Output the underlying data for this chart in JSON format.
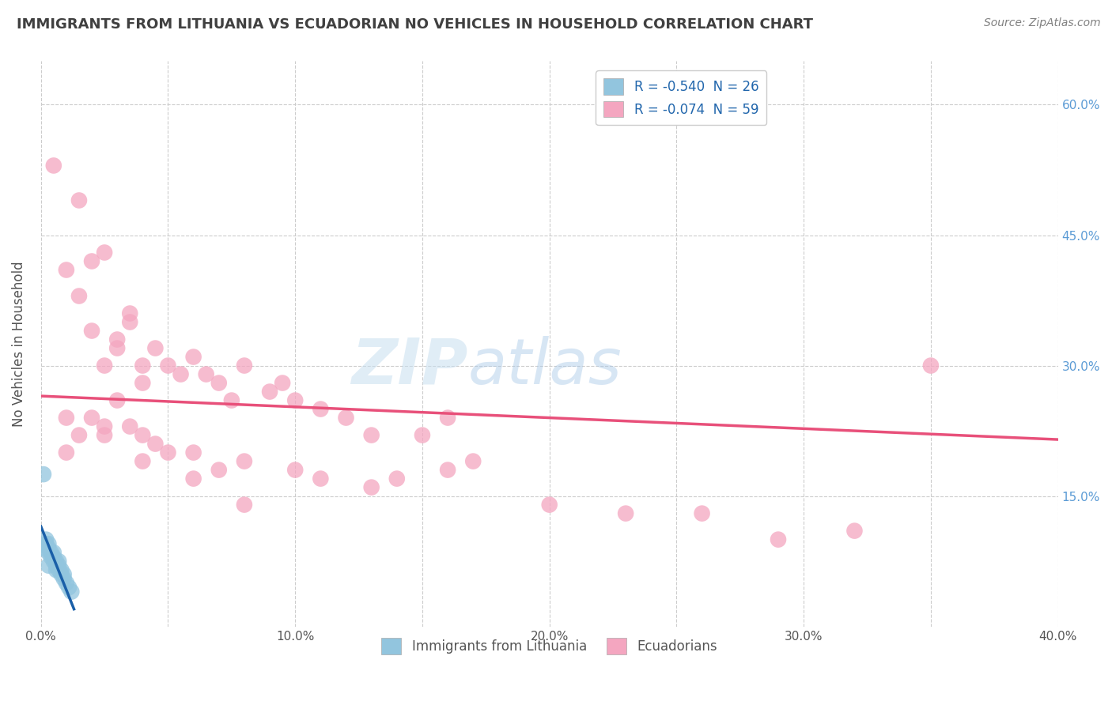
{
  "title": "IMMIGRANTS FROM LITHUANIA VS ECUADORIAN NO VEHICLES IN HOUSEHOLD CORRELATION CHART",
  "source": "Source: ZipAtlas.com",
  "ylabel": "No Vehicles in Household",
  "xlim": [
    0.0,
    0.4
  ],
  "ylim": [
    0.0,
    0.65
  ],
  "xticks": [
    0.0,
    0.05,
    0.1,
    0.15,
    0.2,
    0.25,
    0.3,
    0.35,
    0.4
  ],
  "xticklabels": [
    "0.0%",
    "",
    "10.0%",
    "",
    "20.0%",
    "",
    "30.0%",
    "",
    "40.0%"
  ],
  "yticks_right": [
    0.15,
    0.3,
    0.45,
    0.6
  ],
  "ytick_right_labels": [
    "15.0%",
    "30.0%",
    "45.0%",
    "60.0%"
  ],
  "legend1_label": "R = -0.540  N = 26",
  "legend2_label": "R = -0.074  N = 59",
  "legend_bottom1": "Immigrants from Lithuania",
  "legend_bottom2": "Ecuadorians",
  "blue_color": "#92c5de",
  "pink_color": "#f4a6c0",
  "blue_line_color": "#1a5fa8",
  "pink_line_color": "#e8507a",
  "blue_scatter_x": [
    0.001,
    0.002,
    0.002,
    0.003,
    0.003,
    0.003,
    0.004,
    0.004,
    0.005,
    0.005,
    0.005,
    0.006,
    0.006,
    0.007,
    0.007,
    0.007,
    0.008,
    0.008,
    0.009,
    0.009,
    0.01,
    0.011,
    0.012,
    0.001,
    0.003,
    0.006
  ],
  "blue_scatter_y": [
    0.175,
    0.095,
    0.1,
    0.085,
    0.09,
    0.095,
    0.08,
    0.085,
    0.075,
    0.08,
    0.085,
    0.07,
    0.075,
    0.065,
    0.07,
    0.075,
    0.06,
    0.065,
    0.055,
    0.06,
    0.05,
    0.045,
    0.04,
    0.09,
    0.07,
    0.065
  ],
  "pink_scatter_x": [
    0.005,
    0.015,
    0.01,
    0.02,
    0.015,
    0.025,
    0.02,
    0.03,
    0.025,
    0.035,
    0.03,
    0.04,
    0.035,
    0.045,
    0.04,
    0.05,
    0.055,
    0.06,
    0.065,
    0.07,
    0.075,
    0.08,
    0.09,
    0.095,
    0.1,
    0.11,
    0.12,
    0.13,
    0.15,
    0.16,
    0.01,
    0.015,
    0.02,
    0.025,
    0.03,
    0.035,
    0.04,
    0.045,
    0.05,
    0.06,
    0.07,
    0.08,
    0.1,
    0.11,
    0.13,
    0.14,
    0.16,
    0.2,
    0.23,
    0.26,
    0.29,
    0.32,
    0.01,
    0.025,
    0.04,
    0.06,
    0.08,
    0.17,
    0.35
  ],
  "pink_scatter_y": [
    0.53,
    0.49,
    0.41,
    0.42,
    0.38,
    0.43,
    0.34,
    0.32,
    0.3,
    0.36,
    0.33,
    0.3,
    0.35,
    0.32,
    0.28,
    0.3,
    0.29,
    0.31,
    0.29,
    0.28,
    0.26,
    0.3,
    0.27,
    0.28,
    0.26,
    0.25,
    0.24,
    0.22,
    0.22,
    0.24,
    0.24,
    0.22,
    0.24,
    0.23,
    0.26,
    0.23,
    0.22,
    0.21,
    0.2,
    0.2,
    0.18,
    0.19,
    0.18,
    0.17,
    0.16,
    0.17,
    0.18,
    0.14,
    0.13,
    0.13,
    0.1,
    0.11,
    0.2,
    0.22,
    0.19,
    0.17,
    0.14,
    0.19,
    0.3
  ],
  "pink_line_x0": 0.0,
  "pink_line_x1": 0.4,
  "pink_line_y0": 0.265,
  "pink_line_y1": 0.215,
  "blue_line_x0": 0.0,
  "blue_line_x1": 0.013,
  "blue_line_y0": 0.115,
  "blue_line_y1": 0.02,
  "watermark_top": "ZIP",
  "watermark_bottom": "atlas",
  "grid_color": "#cccccc",
  "background_color": "#ffffff",
  "title_color": "#404040",
  "source_color": "#808080"
}
